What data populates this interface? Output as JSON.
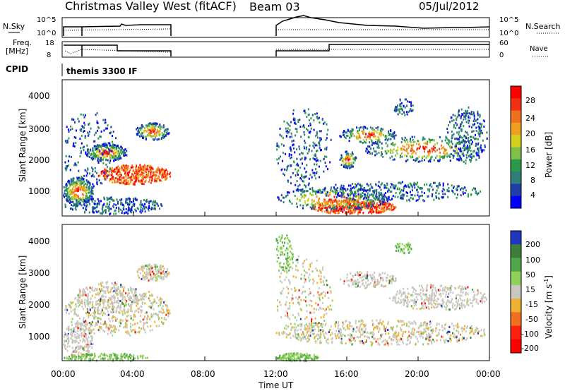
{
  "header": {
    "title": "Christmas Valley West (fitACF)",
    "beam": "Beam 03",
    "date": "05/Jul/2012"
  },
  "chart_data": [
    {
      "type": "line",
      "title": "",
      "left_label": "N.Sky",
      "right_label": "N.Search",
      "left_ticks": [
        "10^5",
        "10^0"
      ],
      "right_ticks": [
        "10^5",
        "10^0"
      ]
    },
    {
      "type": "line",
      "left_label_top": "Freq.",
      "left_label_bottom": "[MHz]",
      "left_ticks": [
        "18",
        "8"
      ],
      "right_label": "Nave",
      "right_ticks": [
        "60",
        "0"
      ],
      "cpid_label": "CPID",
      "cpid_value": "themis 3300 IF"
    },
    {
      "type": "heatmap",
      "ylabel": "Slant Range [km]",
      "y_ticks": [
        "4000",
        "3000",
        "2000",
        "1000"
      ],
      "colorbar_label": "Power [dB]",
      "colorbar_ticks": [
        "28",
        "24",
        "20",
        "16",
        "12",
        "8",
        "4"
      ],
      "colors": [
        "#0000ff",
        "#1e3fa8",
        "#2e7e7a",
        "#2a9a4a",
        "#7fc04a",
        "#d4d020",
        "#f0a020",
        "#f07020",
        "#f03010",
        "#ff0000"
      ]
    },
    {
      "type": "heatmap",
      "ylabel": "Slant Range [km]",
      "y_ticks": [
        "4000",
        "3000",
        "2000",
        "1000"
      ],
      "xlabel": "Time UT",
      "x_ticks": [
        "00:00",
        "04:00",
        "08:00",
        "12:00",
        "16:00",
        "20:00",
        "00:00"
      ],
      "colorbar_label": "Velocity [m s",
      "colorbar_label_sup": "-1",
      "colorbar_label_end": "]",
      "colorbar_ticks": [
        "200",
        "100",
        "50",
        "15",
        "-15",
        "-50",
        "-100",
        "-200"
      ],
      "colors": [
        "#2035c0",
        "#3f7e3a",
        "#4ea84a",
        "#8fd25a",
        "#c8c8c0",
        "#f0b030",
        "#f07020",
        "#ff2010",
        "#ff0000"
      ]
    }
  ]
}
